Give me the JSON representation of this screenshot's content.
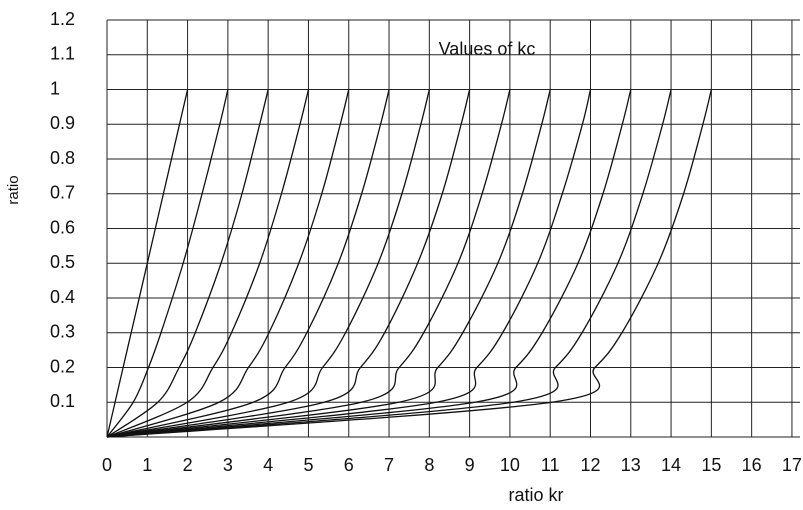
{
  "chart_data": {
    "type": "line",
    "title": "Values of  kc",
    "x_label": "ratio kr",
    "y_label": "ratio",
    "xlim": [
      0,
      17.2
    ],
    "ylim": [
      0,
      1.2
    ],
    "xticks": [
      0,
      1,
      2,
      3,
      4,
      5,
      6,
      7,
      8,
      9,
      10,
      11,
      12,
      13,
      14,
      15,
      16,
      17
    ],
    "yticks": [
      0.1,
      0.2,
      0.3,
      0.4,
      0.5,
      0.6,
      0.7,
      0.8,
      0.9,
      1.0,
      1.1,
      1.2
    ],
    "grid": true,
    "series": [
      {
        "color": "#111111",
        "x": [
          0,
          0.2,
          0.4,
          0.6,
          1.0,
          1.4,
          1.8,
          2
        ],
        "values": [
          0,
          0.1,
          0.2,
          0.3,
          0.5,
          0.7,
          0.9,
          1.0
        ]
      },
      {
        "color": "#111111",
        "x": [
          0,
          0.65,
          1.03,
          1.34,
          1.89,
          2.36,
          2.8,
          3
        ],
        "values": [
          0,
          0.1,
          0.2,
          0.3,
          0.5,
          0.7,
          0.9,
          1.0
        ]
      },
      {
        "color": "#111111",
        "x": [
          0,
          1.26,
          1.79,
          2.19,
          2.83,
          3.35,
          3.79,
          4
        ],
        "values": [
          0,
          0.1,
          0.2,
          0.3,
          0.5,
          0.7,
          0.9,
          1.0
        ]
      },
      {
        "color": "#111111",
        "x": [
          0,
          1.99,
          2.63,
          3.09,
          3.79,
          4.33,
          4.79,
          5
        ],
        "values": [
          0,
          0.1,
          0.2,
          0.3,
          0.5,
          0.7,
          0.9,
          1.0
        ]
      },
      {
        "color": "#111111",
        "x": [
          0,
          2.78,
          3.51,
          4.02,
          4.76,
          5.33,
          5.79,
          6
        ],
        "values": [
          0,
          0.1,
          0.2,
          0.3,
          0.5,
          0.7,
          0.9,
          1.0
        ]
      },
      {
        "color": "#111111",
        "x": [
          0,
          3.63,
          4.42,
          4.96,
          5.74,
          6.32,
          6.79,
          7
        ],
        "values": [
          0,
          0.1,
          0.2,
          0.3,
          0.5,
          0.7,
          0.9,
          1.0
        ]
      },
      {
        "color": "#111111",
        "x": [
          0,
          4.5,
          5.35,
          5.92,
          6.73,
          7.32,
          7.79,
          8
        ],
        "values": [
          0,
          0.1,
          0.2,
          0.3,
          0.5,
          0.7,
          0.9,
          1.0
        ]
      },
      {
        "color": "#111111",
        "x": [
          0,
          5.39,
          6.29,
          6.89,
          7.71,
          8.32,
          8.79,
          9
        ],
        "values": [
          0,
          0.1,
          0.2,
          0.3,
          0.5,
          0.7,
          0.9,
          1.0
        ]
      },
      {
        "color": "#111111",
        "x": [
          0,
          6.31,
          7.25,
          7.86,
          8.71,
          9.31,
          9.79,
          10
        ],
        "values": [
          0,
          0.1,
          0.2,
          0.3,
          0.5,
          0.7,
          0.9,
          1.0
        ]
      },
      {
        "color": "#111111",
        "x": [
          0,
          7.24,
          8.21,
          8.83,
          9.7,
          10.31,
          10.79,
          11
        ],
        "values": [
          0,
          0.1,
          0.2,
          0.3,
          0.5,
          0.7,
          0.9,
          1.0
        ]
      },
      {
        "color": "#111111",
        "x": [
          0,
          8.17,
          9.18,
          9.82,
          10.69,
          11.3,
          11.8,
          12
        ],
        "values": [
          0,
          0.1,
          0.2,
          0.3,
          0.5,
          0.7,
          0.9,
          1.0
        ]
      },
      {
        "color": "#111111",
        "x": [
          0,
          9.13,
          10.15,
          10.8,
          11.69,
          12.31,
          12.79,
          13
        ],
        "values": [
          0,
          0.1,
          0.2,
          0.3,
          0.5,
          0.7,
          0.9,
          1.0
        ]
      },
      {
        "color": "#111111",
        "x": [
          0,
          10.08,
          11.13,
          11.79,
          12.68,
          13.3,
          13.79,
          14
        ],
        "values": [
          0,
          0.1,
          0.2,
          0.3,
          0.5,
          0.7,
          0.9,
          1.0
        ]
      },
      {
        "color": "#111111",
        "x": [
          0,
          11.04,
          12.11,
          12.78,
          13.68,
          14.31,
          14.79,
          15
        ],
        "values": [
          0,
          0.1,
          0.2,
          0.3,
          0.5,
          0.7,
          0.9,
          1.0
        ]
      }
    ]
  }
}
